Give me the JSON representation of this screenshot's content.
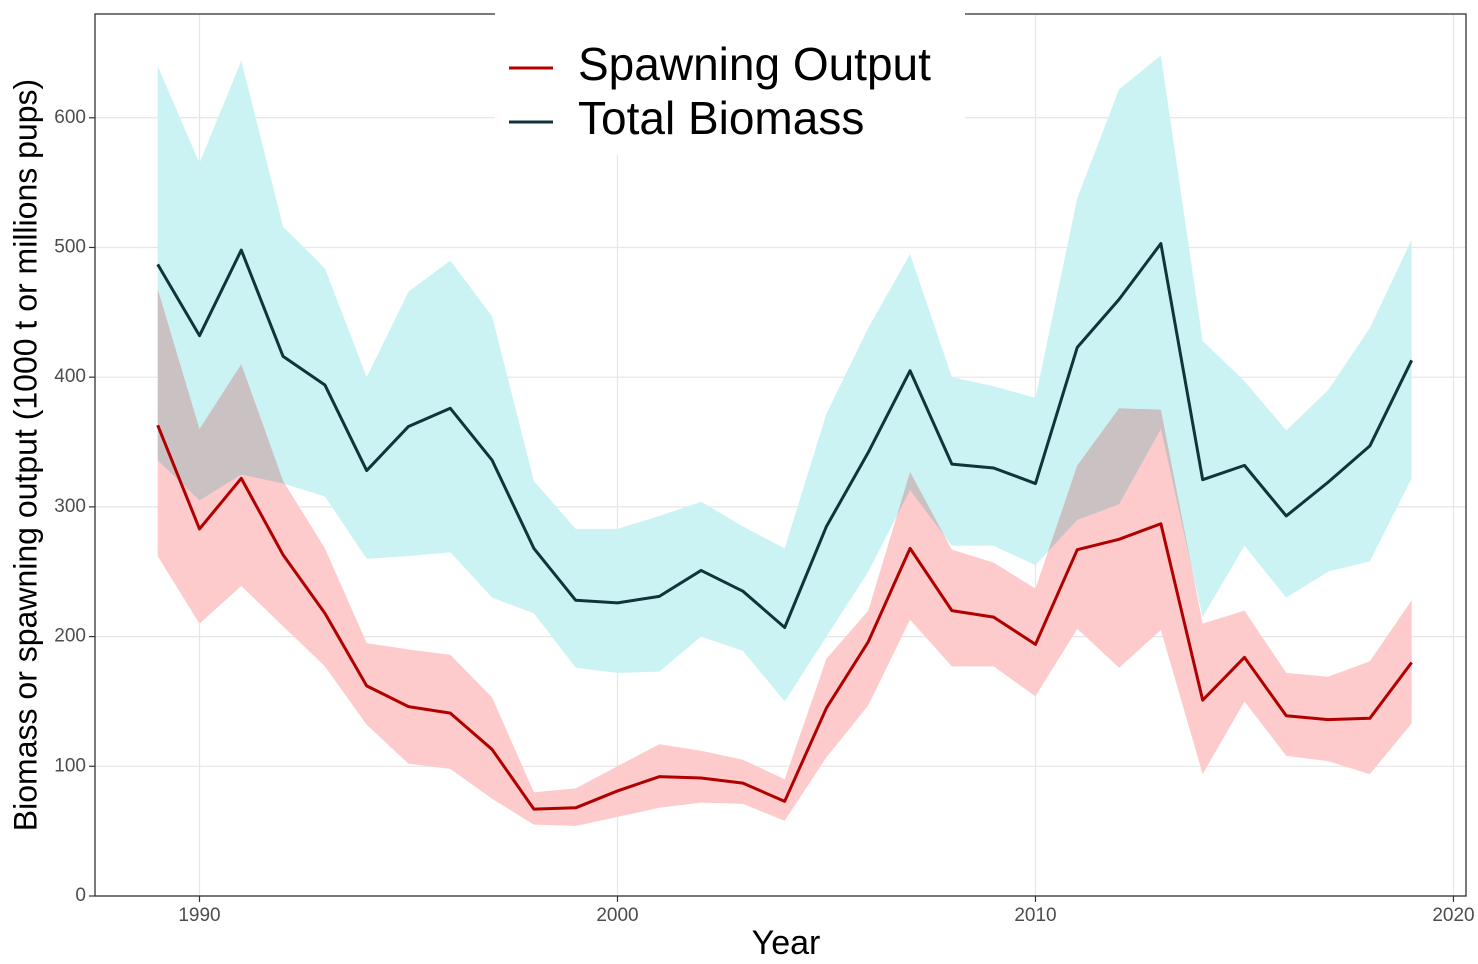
{
  "chart_data": {
    "type": "line",
    "xlabel": "Year",
    "ylabel": "Biomass or spawning output (1000 t or millions pups)",
    "x": [
      1989,
      1990,
      1991,
      1992,
      1993,
      1994,
      1995,
      1996,
      1997,
      1998,
      1999,
      2000,
      2001,
      2002,
      2003,
      2004,
      2005,
      2006,
      2007,
      2008,
      2009,
      2010,
      2011,
      2012,
      2013,
      2014,
      2015,
      2016,
      2017,
      2018,
      2019
    ],
    "series": [
      {
        "name": "Total Biomass",
        "color": "#10343a",
        "band_color": "#ccf3f4",
        "values": [
          487,
          432,
          498,
          416,
          394,
          328,
          362,
          376,
          336,
          268,
          228,
          226,
          231,
          251,
          235,
          207,
          285,
          342,
          405,
          333,
          330,
          318,
          423,
          460,
          503,
          321,
          332,
          293,
          319,
          347,
          413
        ],
        "upper": [
          640,
          565,
          644,
          516,
          484,
          400,
          466,
          490,
          447,
          320,
          283,
          283,
          293,
          304,
          285,
          268,
          372,
          438,
          495,
          400,
          393,
          384,
          538,
          622,
          648,
          428,
          397,
          359,
          390,
          438,
          506
        ],
        "lower": [
          336,
          305,
          325,
          318,
          308,
          260,
          262,
          265,
          230,
          218,
          176,
          172,
          173,
          200,
          189,
          150,
          200,
          250,
          313,
          270,
          270,
          255,
          290,
          302,
          360,
          215,
          270,
          230,
          250,
          258,
          322
        ]
      },
      {
        "name": "Spawning Output",
        "color": "#b00000",
        "band_color": "#fdcbcb",
        "values": [
          363,
          283,
          322,
          263,
          218,
          162,
          146,
          141,
          113,
          67,
          68,
          81,
          92,
          91,
          87,
          73,
          145,
          196,
          268,
          220,
          215,
          194,
          267,
          275,
          287,
          151,
          184,
          139,
          136,
          137,
          180
        ],
        "upper": [
          468,
          360,
          410,
          320,
          268,
          195,
          190,
          186,
          153,
          80,
          83,
          100,
          117,
          112,
          105,
          90,
          183,
          220,
          327,
          267,
          257,
          237,
          332,
          376,
          375,
          210,
          220,
          172,
          169,
          181,
          228
        ],
        "lower": [
          262,
          210,
          239,
          208,
          177,
          132,
          102,
          98,
          75,
          55,
          54,
          61,
          68,
          72,
          71,
          58,
          107,
          147,
          213,
          177,
          177,
          154,
          206,
          176,
          205,
          94,
          150,
          108,
          104,
          94,
          133
        ]
      }
    ],
    "legend_order": [
      "Spawning Output",
      "Total Biomass"
    ],
    "xlim": [
      1987.5,
      2020.3
    ],
    "xticks": [
      1990,
      2000,
      2010,
      2020
    ],
    "ylim": [
      0,
      680
    ],
    "yticks": [
      0,
      100,
      200,
      300,
      400,
      500,
      600
    ],
    "grid": true,
    "legend": "top"
  }
}
